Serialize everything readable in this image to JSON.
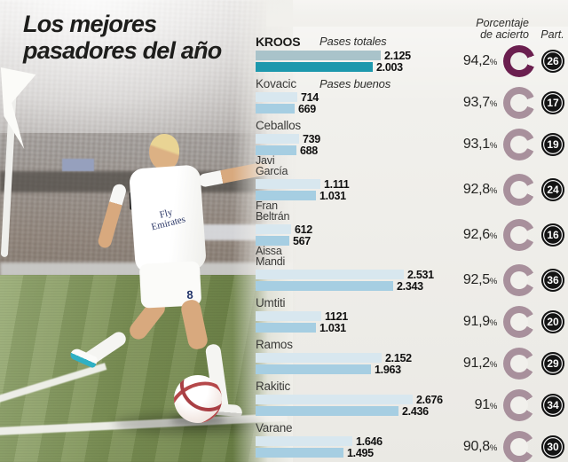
{
  "title": {
    "line1": "Los mejores",
    "line2": "pasadores del año"
  },
  "columns": {
    "pct_line1": "Porcentaje",
    "pct_line2": "de acierto",
    "part": "Part."
  },
  "photo": {
    "jersey_sponsor_line1": "Fly",
    "jersey_sponsor_line2": "Emirates",
    "jersey_number": "8"
  },
  "colors": {
    "bar_total": "#d8e7ef",
    "bar_good": "#a6cee2",
    "bar_total_hl": "#a9c3ca",
    "bar_good_hl": "#1d98ad",
    "ring": "#a8909c",
    "ring_hl": "#6b1f4f",
    "badge_bg": "#141414",
    "badge_text": "#ffffff",
    "panel_bg": "#f1f0ec"
  },
  "chart_data": {
    "type": "bar",
    "title": "Los mejores pasadores del año",
    "series_labels": [
      "Pases totales",
      "Pases buenos"
    ],
    "extra_columns": [
      "Porcentaje de acierto",
      "Part."
    ],
    "xmax": 2676,
    "players": [
      {
        "name": "KROOS",
        "name_lines": [
          "KROOS"
        ],
        "highlight": true,
        "inline_label": "Pases totales",
        "totales": 2125,
        "totales_label": "2.125",
        "buenos": 2003,
        "buenos_label": "2.003",
        "pct": 94.2,
        "pct_label": "94,2",
        "part": "26"
      },
      {
        "name": "Kovacic",
        "name_lines": [
          "Kovacic"
        ],
        "highlight": false,
        "inline_label": "Pases buenos",
        "totales": 714,
        "totales_label": "714",
        "buenos": 669,
        "buenos_label": "669",
        "pct": 93.7,
        "pct_label": "93,7",
        "part": "17"
      },
      {
        "name": "Ceballos",
        "name_lines": [
          "Ceballos"
        ],
        "highlight": false,
        "totales": 739,
        "totales_label": "739",
        "buenos": 688,
        "buenos_label": "688",
        "pct": 93.1,
        "pct_label": "93,1",
        "part": "19"
      },
      {
        "name": "Javi García",
        "name_lines": [
          "Javi",
          "García"
        ],
        "highlight": false,
        "totales": 1111,
        "totales_label": "1.111",
        "buenos": 1031,
        "buenos_label": "1.031",
        "pct": 92.8,
        "pct_label": "92,8",
        "part": "24"
      },
      {
        "name": "Fran Beltrán",
        "name_lines": [
          "Fran",
          "Beltrán"
        ],
        "highlight": false,
        "totales": 612,
        "totales_label": "612",
        "buenos": 567,
        "buenos_label": "567",
        "pct": 92.6,
        "pct_label": "92,6",
        "part": "16"
      },
      {
        "name": "Aissa Mandi",
        "name_lines": [
          "Aissa",
          "Mandi"
        ],
        "highlight": false,
        "totales": 2531,
        "totales_label": "2.531",
        "buenos": 2343,
        "buenos_label": "2.343",
        "pct": 92.5,
        "pct_label": "92,5",
        "part": "36"
      },
      {
        "name": "Umtiti",
        "name_lines": [
          "Umtiti"
        ],
        "highlight": false,
        "totales": 1121,
        "totales_label": "1121",
        "buenos": 1031,
        "buenos_label": "1.031",
        "pct": 91.9,
        "pct_label": "91,9",
        "part": "20"
      },
      {
        "name": "Ramos",
        "name_lines": [
          "Ramos"
        ],
        "highlight": false,
        "totales": 2152,
        "totales_label": "2.152",
        "buenos": 1963,
        "buenos_label": "1.963",
        "pct": 91.2,
        "pct_label": "91,2",
        "part": "29"
      },
      {
        "name": "Rakitic",
        "name_lines": [
          "Rakitic"
        ],
        "highlight": false,
        "totales": 2676,
        "totales_label": "2.676",
        "buenos": 2436,
        "buenos_label": "2.436",
        "pct": 91.0,
        "pct_label": "91",
        "part": "34"
      },
      {
        "name": "Varane",
        "name_lines": [
          "Varane"
        ],
        "highlight": false,
        "totales": 1646,
        "totales_label": "1.646",
        "buenos": 1495,
        "buenos_label": "1.495",
        "pct": 90.8,
        "pct_label": "90,8",
        "part": "30"
      }
    ]
  }
}
